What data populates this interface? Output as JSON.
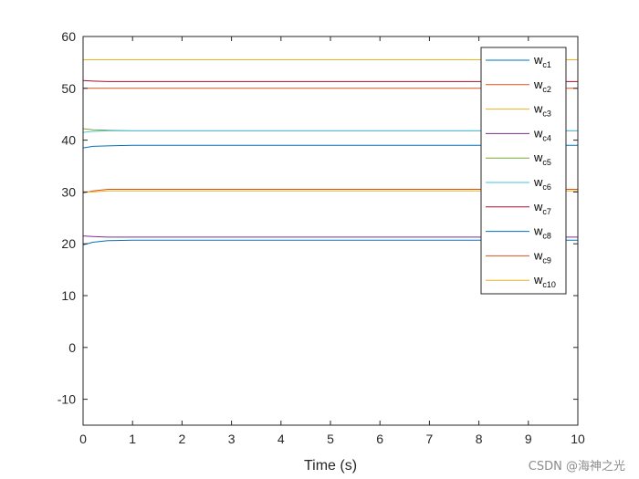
{
  "watermark": "CSDN @海神之光",
  "chart_data": {
    "type": "line",
    "title": "",
    "xlabel": "Time (s)",
    "ylabel": "",
    "xlim": [
      0,
      10
    ],
    "ylim": [
      -15,
      60
    ],
    "xticks": [
      "0",
      "1",
      "2",
      "3",
      "4",
      "5",
      "6",
      "7",
      "8",
      "9",
      "10"
    ],
    "yticks": [
      "-10",
      "0",
      "10",
      "20",
      "30",
      "40",
      "50",
      "60"
    ],
    "grid": false,
    "legend_position": "top-right",
    "series": [
      {
        "name": "wc1",
        "label_main": "w",
        "label_sub": "c1",
        "color": "#0072bd",
        "x": [
          0,
          0.2,
          0.5,
          1,
          10
        ],
        "y": [
          38.5,
          38.8,
          38.9,
          39.0,
          39.0
        ]
      },
      {
        "name": "wc2",
        "label_main": "w",
        "label_sub": "c2",
        "color": "#d95319",
        "x": [
          0,
          0.2,
          0.5,
          1,
          10
        ],
        "y": [
          50.0,
          50.0,
          50.0,
          50.0,
          50.0
        ]
      },
      {
        "name": "wc3",
        "label_main": "w",
        "label_sub": "c3",
        "color": "#edb120",
        "x": [
          0,
          0.2,
          0.5,
          1,
          10
        ],
        "y": [
          55.5,
          55.5,
          55.5,
          55.5,
          55.5
        ]
      },
      {
        "name": "wc4",
        "label_main": "w",
        "label_sub": "c4",
        "color": "#7e2f8e",
        "x": [
          0,
          0.2,
          0.5,
          1,
          10
        ],
        "y": [
          21.5,
          21.4,
          21.3,
          21.3,
          21.3
        ]
      },
      {
        "name": "wc5",
        "label_main": "w",
        "label_sub": "c5",
        "color": "#77ac30",
        "x": [
          0,
          0.2,
          0.5,
          1,
          10
        ],
        "y": [
          42.2,
          42.0,
          41.9,
          41.8,
          41.8
        ]
      },
      {
        "name": "wc6",
        "label_main": "w",
        "label_sub": "c6",
        "color": "#4dbeee",
        "x": [
          0,
          0.2,
          0.5,
          1,
          10
        ],
        "y": [
          41.5,
          41.7,
          41.8,
          41.8,
          41.8
        ]
      },
      {
        "name": "wc7",
        "label_main": "w",
        "label_sub": "c7",
        "color": "#a2142f",
        "x": [
          0,
          0.2,
          0.5,
          1,
          10
        ],
        "y": [
          51.5,
          51.4,
          51.3,
          51.3,
          51.3
        ]
      },
      {
        "name": "wc8",
        "label_main": "w",
        "label_sub": "c8",
        "color": "#0072bd",
        "x": [
          0,
          0.2,
          0.5,
          1,
          10
        ],
        "y": [
          19.8,
          20.3,
          20.6,
          20.7,
          20.7
        ]
      },
      {
        "name": "wc9",
        "label_main": "w",
        "label_sub": "c9",
        "color": "#d95319",
        "x": [
          0,
          0.2,
          0.5,
          1,
          10
        ],
        "y": [
          29.8,
          30.2,
          30.5,
          30.5,
          30.5
        ]
      },
      {
        "name": "wc10",
        "label_main": "w",
        "label_sub": "c10",
        "color": "#edb120",
        "x": [
          0,
          0.2,
          0.5,
          1,
          10
        ],
        "y": [
          30.0,
          30.0,
          30.2,
          30.2,
          30.2
        ]
      }
    ]
  }
}
